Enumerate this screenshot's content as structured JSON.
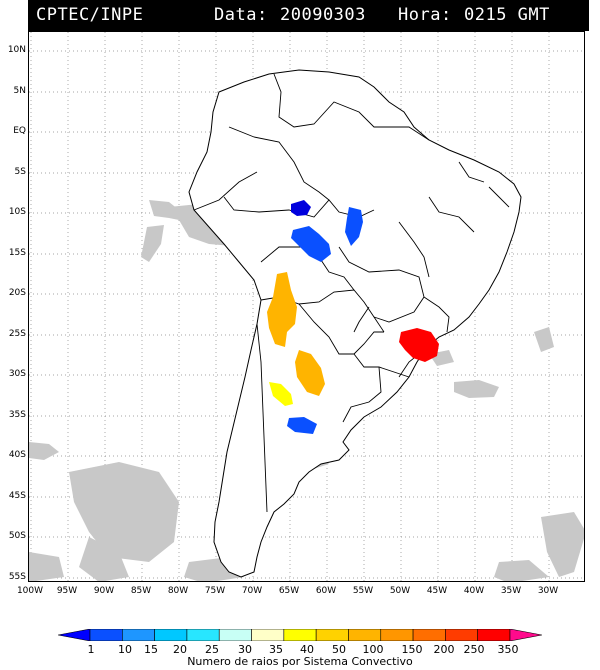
{
  "header": {
    "source": "CPTEC/INPE",
    "date_label": "Data:",
    "date_value": "20090303",
    "time_label": "Hora:",
    "time_value": "0215 GMT"
  },
  "map": {
    "lat_labels": [
      "10N",
      "5N",
      "EQ",
      "5S",
      "10S",
      "15S",
      "20S",
      "25S",
      "30S",
      "35S",
      "40S",
      "45S",
      "50S",
      "55S"
    ],
    "lon_labels": [
      "100W",
      "95W",
      "90W",
      "85W",
      "80W",
      "75W",
      "70W",
      "65W",
      "60W",
      "55W",
      "50W",
      "45W",
      "40W",
      "35W",
      "30W"
    ],
    "land_color": "#ffffff",
    "border_color": "#000000",
    "cloud_color": "#c8c8c8",
    "grid": "dotted"
  },
  "colorbar": {
    "labels": [
      "1",
      "10",
      "15",
      "20",
      "25",
      "30",
      "35",
      "40",
      "50",
      "100",
      "150",
      "200",
      "250",
      "350"
    ],
    "colors": [
      "#0000ff",
      "#0a50ff",
      "#1e96ff",
      "#00c8ff",
      "#28e6ff",
      "#c8fff5",
      "#ffffc8",
      "#ffff00",
      "#ffd200",
      "#ffb400",
      "#ff9600",
      "#ff6e00",
      "#ff3c00",
      "#ff0000",
      "#ff0a8c"
    ],
    "title": "Numero de raios por Sistema Convectivo"
  },
  "systems": [
    {
      "region": "west Amazonas",
      "color": "#0000cc"
    },
    {
      "region": "Rondonia / Mato Grosso",
      "color": "#0a50ff"
    },
    {
      "region": "Mato Grosso east",
      "color": "#0a50ff"
    },
    {
      "region": "northwest Argentina",
      "color": "#ffb400"
    },
    {
      "region": "Santa Fe",
      "color": "#ffb400"
    },
    {
      "region": "Cordoba",
      "color": "#ffff00"
    },
    {
      "region": "Buenos Aires",
      "color": "#0a50ff"
    },
    {
      "region": "Sao Paulo coast",
      "color": "#ff0000"
    }
  ]
}
